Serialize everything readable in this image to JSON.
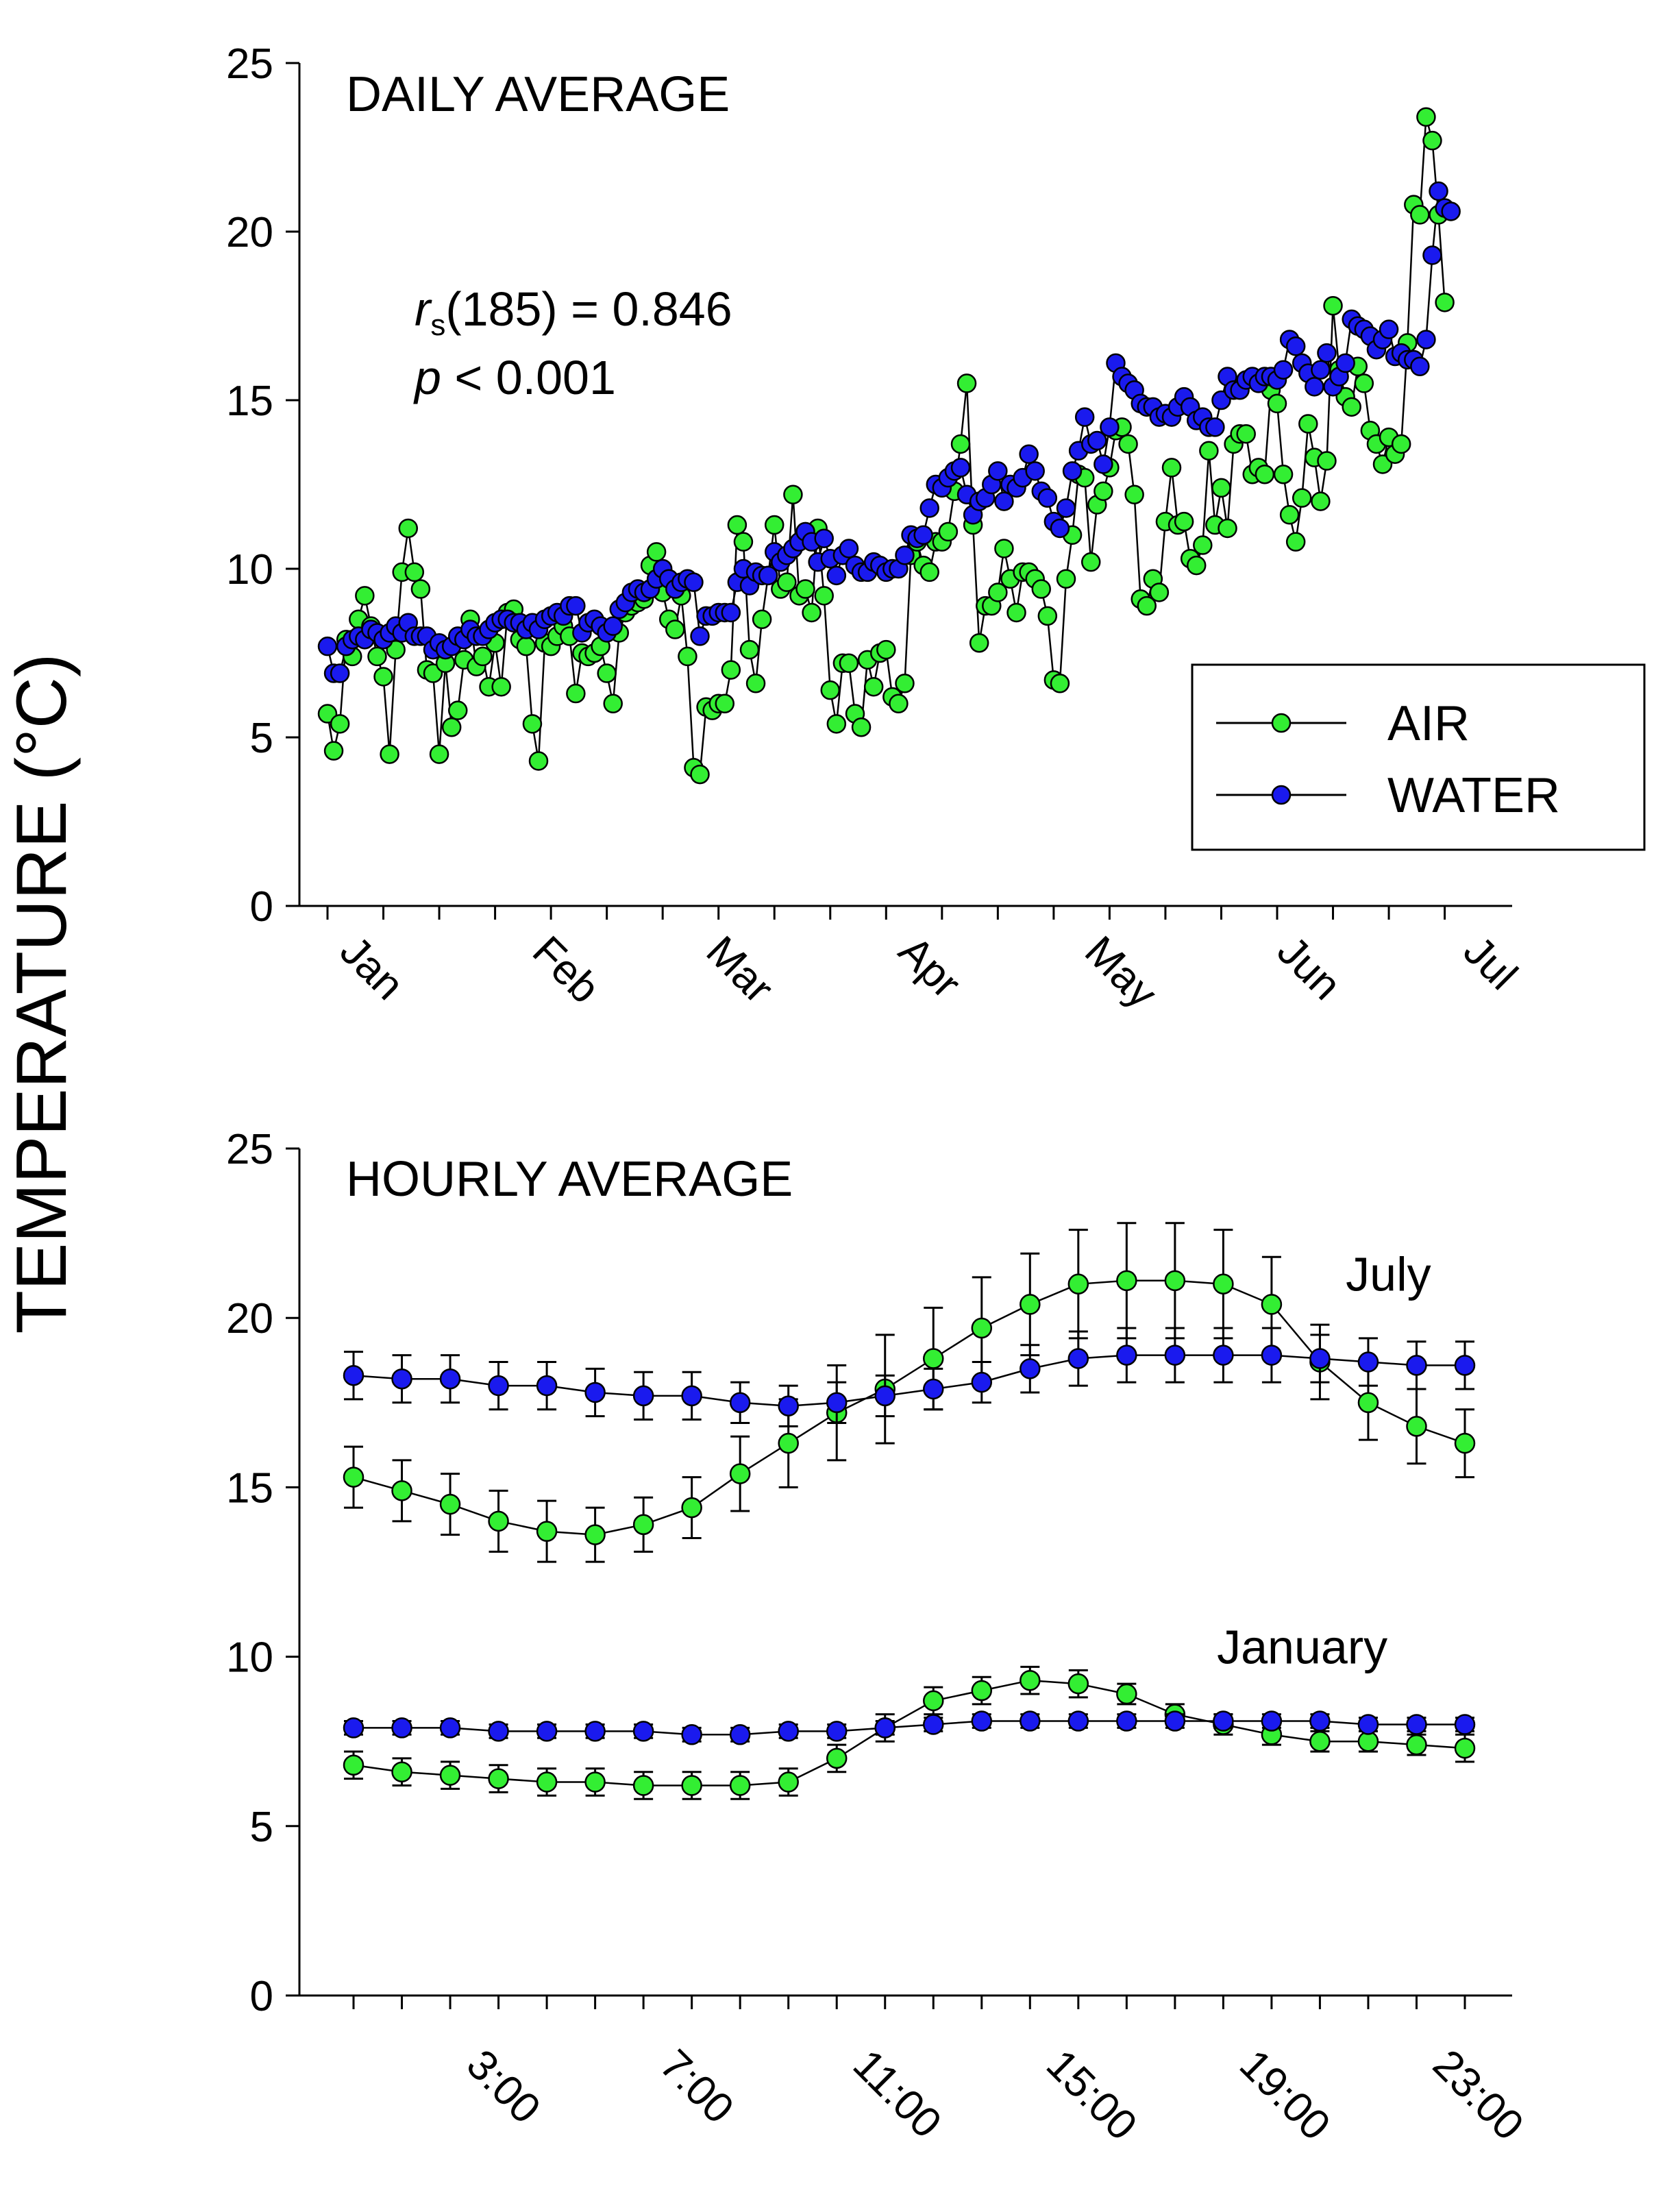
{
  "y_axis_label": "TEMPERATURE (°C)",
  "colors": {
    "air": "#33ee33",
    "water": "#1a1aee",
    "outline": "#000000"
  },
  "chart_data": [
    {
      "type": "line",
      "title": "DAILY AVERAGE",
      "xlabel": "",
      "ylabel": "TEMPERATURE (°C)",
      "ylim": [
        0,
        25
      ],
      "yticks": [
        0,
        5,
        10,
        15,
        20,
        25
      ],
      "xlim": [
        0,
        187
      ],
      "month_labels": [
        "Jan",
        "Feb",
        "Mar",
        "Apr",
        "May",
        "Jun",
        "Jul"
      ],
      "month_positions": [
        0,
        31,
        59,
        90,
        120,
        151,
        181
      ],
      "stat_label": "r",
      "stat_subscript": "s",
      "stat_value": "(185) = 0.846",
      "p_label": "p",
      "p_value": " < 0.001",
      "legend": {
        "placement": "right",
        "entries": [
          "AIR",
          "WATER"
        ]
      },
      "series": [
        {
          "name": "AIR",
          "values": [
            5.7,
            4.6,
            5.4,
            7.9,
            7.4,
            8.5,
            9.2,
            8.3,
            7.4,
            6.8,
            4.5,
            7.6,
            9.9,
            11.2,
            9.9,
            9.4,
            7.0,
            6.9,
            4.5,
            7.2,
            5.3,
            5.8,
            7.3,
            8.5,
            7.1,
            7.4,
            6.5,
            7.8,
            6.5,
            8.7,
            8.8,
            7.9,
            7.7,
            5.4,
            4.3,
            7.8,
            7.7,
            8.0,
            8.3,
            8.0,
            6.3,
            7.5,
            7.4,
            7.5,
            7.7,
            6.9,
            6.0,
            8.1,
            8.7,
            8.9,
            9.0,
            9.1,
            10.1,
            10.5,
            9.3,
            8.5,
            8.2,
            9.2,
            7.4,
            4.1,
            3.9,
            5.9,
            5.8,
            6.0,
            6.0,
            7.0,
            11.3,
            10.8,
            7.6,
            6.6,
            8.5,
            9.8,
            11.3,
            9.4,
            9.6,
            12.2,
            9.2,
            9.4,
            8.7,
            11.2,
            9.2,
            6.4,
            5.4,
            7.2,
            7.2,
            5.7,
            5.3,
            7.3,
            6.5,
            7.5,
            7.6,
            6.2,
            6.0,
            6.6,
            10.4,
            10.8,
            10.1,
            9.9,
            10.8,
            10.8,
            11.1,
            12.3,
            13.7,
            15.5,
            11.3,
            7.8,
            8.9,
            8.9,
            9.3,
            10.6,
            9.7,
            8.7,
            9.9,
            9.9,
            9.7,
            9.4,
            8.6,
            6.7,
            6.6,
            9.7,
            11.0,
            12.8,
            12.7,
            10.2,
            11.9,
            12.3,
            13.0,
            14.1,
            14.2,
            13.7,
            12.2,
            9.1,
            8.9,
            9.7,
            9.3,
            11.4,
            13.0,
            11.3,
            11.4,
            10.3,
            10.1,
            10.7,
            13.5,
            11.3,
            12.4,
            11.2,
            13.7,
            14.0,
            14.0,
            12.8,
            13.0,
            12.8,
            15.3,
            14.9,
            12.8,
            11.6,
            10.8,
            12.1,
            14.3,
            13.3,
            12.0,
            13.2,
            17.8,
            15.9,
            15.1,
            14.8,
            16.0,
            15.5,
            14.1,
            13.7,
            13.1,
            13.9,
            13.4,
            13.7,
            16.7,
            20.8,
            20.5,
            23.4,
            22.7,
            20.5,
            17.9
          ]
        },
        {
          "name": "WATER",
          "values": [
            7.7,
            6.9,
            6.9,
            7.7,
            7.9,
            8.0,
            7.9,
            8.2,
            8.1,
            7.9,
            8.1,
            8.3,
            8.1,
            8.4,
            8.0,
            8.0,
            8.0,
            7.6,
            7.8,
            7.6,
            7.7,
            8.0,
            7.9,
            8.2,
            8.0,
            8.0,
            8.2,
            8.4,
            8.5,
            8.5,
            8.4,
            8.4,
            8.2,
            8.4,
            8.2,
            8.5,
            8.6,
            8.7,
            8.6,
            8.9,
            8.9,
            8.1,
            8.4,
            8.5,
            8.3,
            8.1,
            8.3,
            8.8,
            9.0,
            9.3,
            9.4,
            9.3,
            9.4,
            9.7,
            10.0,
            9.7,
            9.4,
            9.6,
            9.7,
            9.6,
            8.0,
            8.6,
            8.6,
            8.7,
            8.7,
            8.7,
            9.6,
            10.0,
            9.5,
            9.9,
            9.8,
            9.8,
            10.5,
            10.2,
            10.4,
            10.6,
            10.8,
            11.1,
            10.8,
            10.2,
            10.9,
            10.3,
            9.8,
            10.4,
            10.6,
            10.1,
            9.9,
            9.9,
            10.2,
            10.1,
            9.9,
            10.0,
            10.0,
            10.4,
            11.0,
            10.9,
            11.0,
            11.8,
            12.5,
            12.4,
            12.7,
            12.9,
            13.0,
            12.2,
            11.6,
            12.0,
            12.1,
            12.5,
            12.9,
            12.0,
            12.5,
            12.4,
            12.7,
            13.4,
            12.9,
            12.3,
            12.1,
            11.4,
            11.2,
            11.8,
            12.9,
            13.5,
            14.5,
            13.7,
            13.8,
            13.1,
            14.2,
            16.1,
            15.7,
            15.5,
            15.3,
            14.9,
            14.8,
            14.8,
            14.5,
            14.6,
            14.5,
            14.8,
            15.1,
            14.8,
            14.4,
            14.5,
            14.2,
            14.2,
            15.0,
            15.7,
            15.3,
            15.3,
            15.6,
            15.7,
            15.5,
            15.7,
            15.7,
            15.6,
            15.9,
            16.8,
            16.6,
            16.1,
            15.8,
            15.4,
            15.9,
            16.4,
            15.4,
            15.7,
            16.1,
            17.4,
            17.2,
            17.1,
            16.9,
            16.5,
            16.8,
            17.1,
            16.3,
            16.4,
            16.2,
            16.2,
            16.0,
            16.8,
            19.3,
            21.2,
            20.7,
            20.6
          ]
        }
      ]
    },
    {
      "type": "line",
      "title": "HOURLY AVERAGE",
      "xlabel": "",
      "ylabel": "TEMPERATURE (°C)",
      "ylim": [
        0,
        25
      ],
      "yticks": [
        0,
        5,
        10,
        15,
        20,
        25
      ],
      "xlim": [
        -1,
        24.5
      ],
      "x": [
        0,
        1,
        2,
        3,
        4,
        5,
        6,
        7,
        8,
        9,
        10,
        11,
        12,
        13,
        14,
        15,
        16,
        17,
        18,
        19,
        20,
        21,
        22,
        23
      ],
      "xtick_labels": [
        "3:00",
        "7:00",
        "11:00",
        "15:00",
        "19:00",
        "23:00"
      ],
      "xtick_positions": [
        3,
        7,
        11,
        15,
        19,
        23
      ],
      "series_labels": [
        {
          "text": "July",
          "x": 22.3,
          "y": 20.8
        },
        {
          "text": "January",
          "x": 21.4,
          "y": 9.8
        }
      ],
      "series": [
        {
          "name": "July AIR",
          "group": "AIR",
          "values": [
            15.3,
            14.9,
            14.5,
            14.0,
            13.7,
            13.6,
            13.9,
            14.4,
            15.4,
            16.3,
            17.2,
            17.9,
            18.8,
            19.7,
            20.4,
            21.0,
            21.1,
            21.1,
            21.0,
            20.4,
            18.7,
            17.5,
            16.8,
            16.3
          ],
          "error": [
            0.9,
            0.9,
            0.9,
            0.9,
            0.9,
            0.8,
            0.8,
            0.9,
            1.1,
            1.3,
            1.4,
            1.6,
            1.5,
            1.5,
            1.5,
            1.6,
            1.7,
            1.7,
            1.6,
            1.4,
            1.1,
            1.1,
            1.1,
            1.0
          ]
        },
        {
          "name": "July WATER",
          "group": "WATER",
          "values": [
            18.3,
            18.2,
            18.2,
            18.0,
            18.0,
            17.8,
            17.7,
            17.7,
            17.5,
            17.4,
            17.5,
            17.7,
            17.9,
            18.1,
            18.5,
            18.8,
            18.9,
            18.9,
            18.9,
            18.9,
            18.8,
            18.7,
            18.6,
            18.6
          ],
          "error": [
            0.7,
            0.7,
            0.7,
            0.7,
            0.7,
            0.7,
            0.7,
            0.7,
            0.6,
            0.6,
            0.6,
            0.6,
            0.6,
            0.6,
            0.7,
            0.8,
            0.8,
            0.8,
            0.8,
            0.8,
            0.7,
            0.7,
            0.7,
            0.7
          ]
        },
        {
          "name": "January AIR",
          "group": "AIR",
          "values": [
            6.8,
            6.6,
            6.5,
            6.4,
            6.3,
            6.3,
            6.2,
            6.2,
            6.2,
            6.3,
            7.0,
            7.9,
            8.7,
            9.0,
            9.3,
            9.2,
            8.9,
            8.3,
            8.0,
            7.7,
            7.5,
            7.5,
            7.4,
            7.3
          ],
          "error": [
            0.4,
            0.4,
            0.4,
            0.4,
            0.4,
            0.4,
            0.4,
            0.4,
            0.4,
            0.4,
            0.4,
            0.4,
            0.4,
            0.4,
            0.4,
            0.4,
            0.3,
            0.3,
            0.3,
            0.3,
            0.3,
            0.3,
            0.3,
            0.4
          ]
        },
        {
          "name": "January WATER",
          "group": "WATER",
          "values": [
            7.9,
            7.9,
            7.9,
            7.8,
            7.8,
            7.8,
            7.8,
            7.7,
            7.7,
            7.8,
            7.8,
            7.9,
            8.0,
            8.1,
            8.1,
            8.1,
            8.1,
            8.1,
            8.1,
            8.1,
            8.1,
            8.0,
            8.0,
            8.0
          ],
          "error": [
            0.2,
            0.2,
            0.2,
            0.2,
            0.2,
            0.2,
            0.2,
            0.2,
            0.2,
            0.2,
            0.2,
            0.2,
            0.2,
            0.2,
            0.2,
            0.2,
            0.2,
            0.2,
            0.2,
            0.2,
            0.2,
            0.2,
            0.2,
            0.2
          ]
        }
      ]
    }
  ]
}
